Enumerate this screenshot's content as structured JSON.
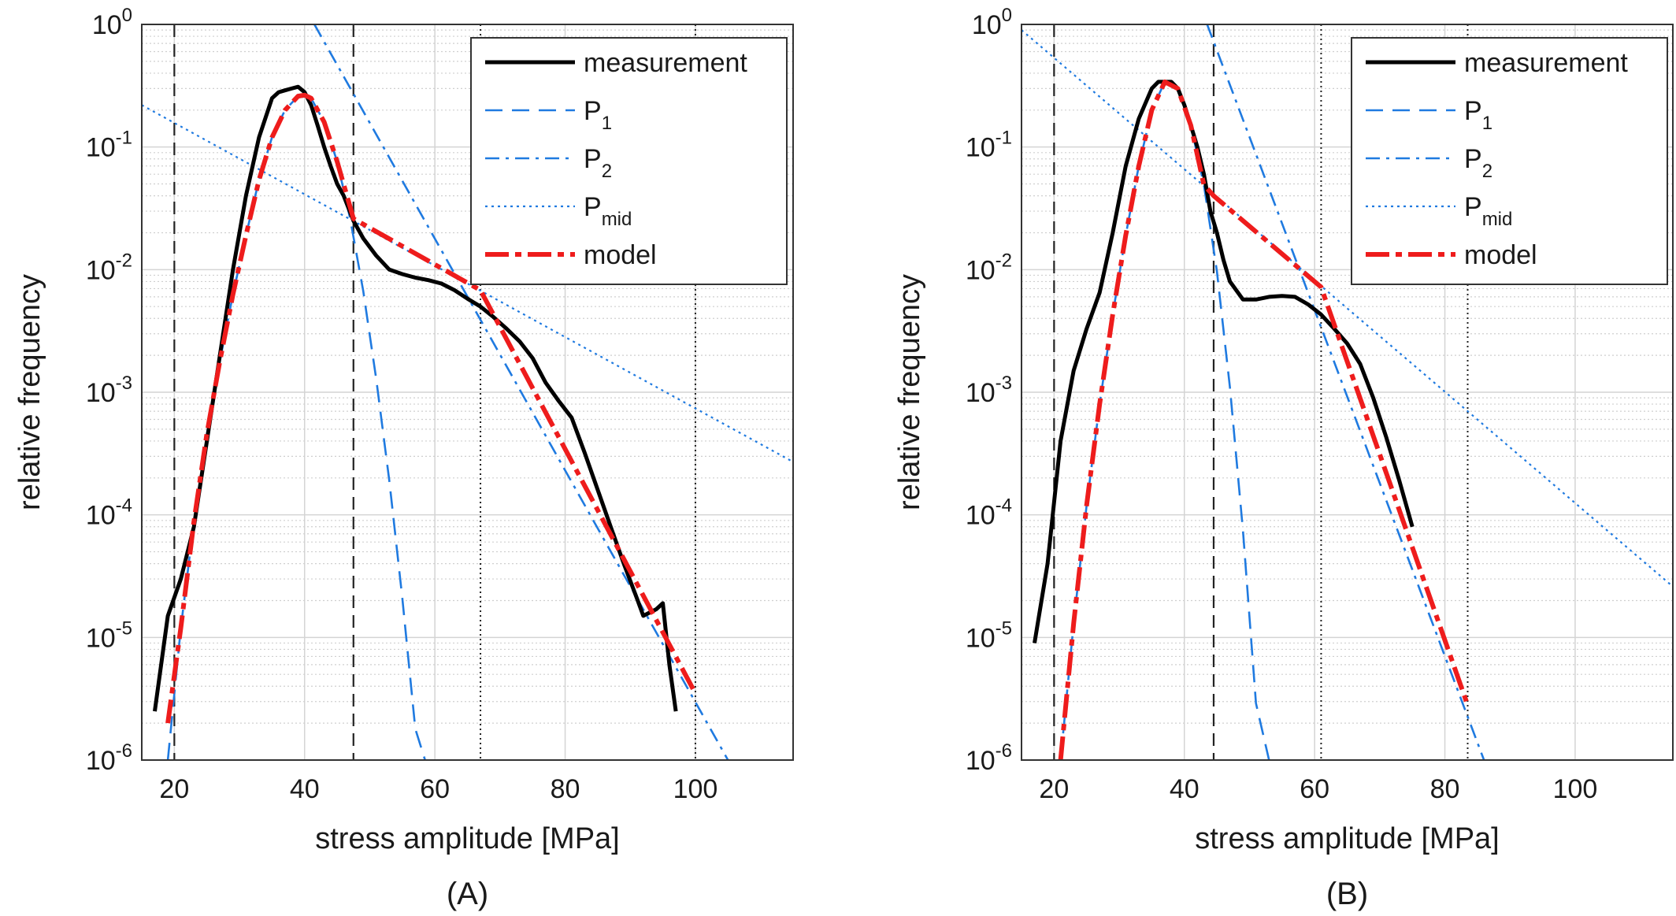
{
  "chart_data": [
    {
      "panel_label": "(A)",
      "type": "line",
      "xlabel": "stress amplitude [MPa]",
      "ylabel": "relative frequency",
      "xlim": [
        15,
        115
      ],
      "ylim": [
        1e-06,
        1
      ],
      "yscale": "log",
      "x_ticks": [
        20,
        40,
        60,
        80,
        100
      ],
      "y_ticks": [
        {
          "base": "10",
          "exp": "0"
        },
        {
          "base": "10",
          "exp": "-1"
        },
        {
          "base": "10",
          "exp": "-2"
        },
        {
          "base": "10",
          "exp": "-3"
        },
        {
          "base": "10",
          "exp": "-4"
        },
        {
          "base": "10",
          "exp": "-5"
        },
        {
          "base": "10",
          "exp": "-6"
        }
      ],
      "grid": true,
      "legend_position": "top-right",
      "vlines_dashed": [
        20,
        47.5
      ],
      "vlines_dotted": [
        67,
        100
      ],
      "series": [
        {
          "name": "measurement",
          "x": [
            17,
            19,
            21,
            23,
            25,
            27,
            29,
            31,
            33,
            35,
            36,
            37,
            38,
            39,
            40,
            41,
            42,
            43,
            44,
            45,
            46,
            47.5,
            49,
            51,
            53,
            55,
            57,
            59,
            61,
            63,
            65,
            67,
            69,
            71,
            73,
            75,
            77,
            79,
            81,
            83,
            85,
            87,
            89,
            91,
            92,
            93,
            94,
            95,
            96,
            97
          ],
          "y": [
            2.5e-06,
            1.5e-05,
            3e-05,
            8e-05,
            0.0004,
            0.002,
            0.01,
            0.04,
            0.12,
            0.25,
            0.28,
            0.29,
            0.3,
            0.31,
            0.28,
            0.22,
            0.15,
            0.1,
            0.07,
            0.05,
            0.04,
            0.025,
            0.018,
            0.013,
            0.01,
            0.0092,
            0.0086,
            0.0082,
            0.0077,
            0.0068,
            0.0058,
            0.005,
            0.0041,
            0.0033,
            0.0026,
            0.0019,
            0.0012,
            0.00085,
            0.00062,
            0.00032,
            0.00016,
            8e-05,
            4e-05,
            2.1e-05,
            1.5e-05,
            1.6e-05,
            1.7e-05,
            1.9e-05,
            6e-06,
            2.5e-06
          ]
        },
        {
          "name": "P1",
          "x": [
            19,
            21,
            23,
            25,
            27,
            29,
            31,
            33,
            35,
            37,
            39,
            41,
            43,
            45,
            47,
            49,
            51,
            53,
            55,
            57,
            58.5
          ],
          "y": [
            1e-06,
            1.2e-05,
            8.8e-05,
            0.00046,
            0.0018,
            0.0063,
            0.019,
            0.054,
            0.12,
            0.2,
            0.26,
            0.25,
            0.16,
            0.076,
            0.026,
            0.0067,
            0.00128,
            0.00019,
            2.1e-05,
            1.8e-06,
            1e-06
          ]
        },
        {
          "name": "P2",
          "x": [
            41.5,
            105
          ],
          "y": [
            1,
            1e-06
          ]
        },
        {
          "name": "Pmid",
          "x": [
            15,
            115
          ],
          "y": [
            0.22,
            0.00027
          ]
        },
        {
          "name": "model",
          "x": [
            19,
            21,
            23,
            25,
            27,
            29,
            31,
            33,
            35,
            37,
            39,
            40,
            41,
            43,
            45,
            47.5,
            67,
            100
          ],
          "y": [
            2e-06,
            1.2e-05,
            8.8e-05,
            0.00046,
            0.0018,
            0.0063,
            0.019,
            0.054,
            0.12,
            0.2,
            0.26,
            0.265,
            0.25,
            0.16,
            0.076,
            0.026,
            0.0068,
            3.5e-06
          ]
        }
      ]
    },
    {
      "panel_label": "(B)",
      "type": "line",
      "xlabel": "stress amplitude [MPa]",
      "ylabel": "relative frequency",
      "xlim": [
        15,
        115
      ],
      "ylim": [
        1e-06,
        1
      ],
      "yscale": "log",
      "x_ticks": [
        20,
        40,
        60,
        80,
        100
      ],
      "y_ticks": [
        {
          "base": "10",
          "exp": "0"
        },
        {
          "base": "10",
          "exp": "-1"
        },
        {
          "base": "10",
          "exp": "-2"
        },
        {
          "base": "10",
          "exp": "-3"
        },
        {
          "base": "10",
          "exp": "-4"
        },
        {
          "base": "10",
          "exp": "-5"
        },
        {
          "base": "10",
          "exp": "-6"
        }
      ],
      "grid": true,
      "legend_position": "top-right",
      "vlines_dashed": [
        20,
        44.5
      ],
      "vlines_dotted": [
        61,
        83.5
      ],
      "series": [
        {
          "name": "measurement",
          "x": [
            17,
            19,
            21,
            23,
            25,
            27,
            29,
            31,
            33,
            35,
            36,
            37,
            38,
            39,
            40,
            41,
            42,
            43,
            44,
            45,
            46,
            47,
            49,
            51,
            53,
            55,
            57,
            59,
            61,
            63,
            65,
            67,
            69,
            71,
            73,
            75
          ],
          "y": [
            9e-06,
            4e-05,
            0.0004,
            0.0015,
            0.0033,
            0.0065,
            0.02,
            0.07,
            0.17,
            0.3,
            0.34,
            0.34,
            0.34,
            0.3,
            0.22,
            0.15,
            0.1,
            0.06,
            0.03,
            0.02,
            0.012,
            0.008,
            0.0057,
            0.0057,
            0.006,
            0.0061,
            0.006,
            0.0052,
            0.0043,
            0.0033,
            0.0025,
            0.0017,
            0.0009,
            0.00043,
            0.00019,
            8e-05
          ]
        },
        {
          "name": "P1",
          "x": [
            21,
            23,
            25,
            27,
            29,
            31,
            33,
            35,
            37,
            39,
            41,
            43,
            45,
            47,
            49,
            51,
            53,
            54.5
          ],
          "y": [
            1e-06,
            1.3e-05,
            0.00012,
            0.0008,
            0.0043,
            0.019,
            0.07,
            0.2,
            0.34,
            0.3,
            0.15,
            0.049,
            0.0097,
            0.0011,
            7.4e-05,
            2.9e-06,
            1e-06,
            1e-06
          ]
        },
        {
          "name": "P2",
          "x": [
            43.5,
            86
          ],
          "y": [
            1,
            1e-06
          ]
        },
        {
          "name": "Pmid",
          "x": [
            15,
            115
          ],
          "y": [
            0.9,
            2.6e-05
          ]
        },
        {
          "name": "model",
          "x": [
            21,
            23,
            25,
            27,
            29,
            31,
            33,
            35,
            37,
            39,
            41,
            43,
            44.5,
            61,
            83.5
          ],
          "y": [
            1e-06,
            1.3e-05,
            0.00012,
            0.0008,
            0.0043,
            0.019,
            0.07,
            0.2,
            0.34,
            0.3,
            0.15,
            0.049,
            0.04,
            0.0072,
            2.8e-06
          ]
        }
      ]
    }
  ],
  "legend": {
    "entries": [
      {
        "key": "measurement",
        "text": "measurement",
        "sub": ""
      },
      {
        "key": "P1",
        "text": "P",
        "sub": "1"
      },
      {
        "key": "P2",
        "text": "P",
        "sub": "2"
      },
      {
        "key": "Pmid",
        "text": "P",
        "sub": "mid"
      },
      {
        "key": "model",
        "text": "model",
        "sub": ""
      }
    ]
  },
  "styles": {
    "measurement": {
      "color": "#000000",
      "dash": ""
    },
    "P1": {
      "color": "#1f7ae0",
      "dash": "22 12"
    },
    "P2": {
      "color": "#1f7ae0",
      "dash": "18 8 4 8"
    },
    "Pmid": {
      "color": "#1f7ae0",
      "dash": "3 5"
    },
    "model": {
      "color": "#ee1c1c",
      "dash": "30 8 8 8"
    }
  }
}
